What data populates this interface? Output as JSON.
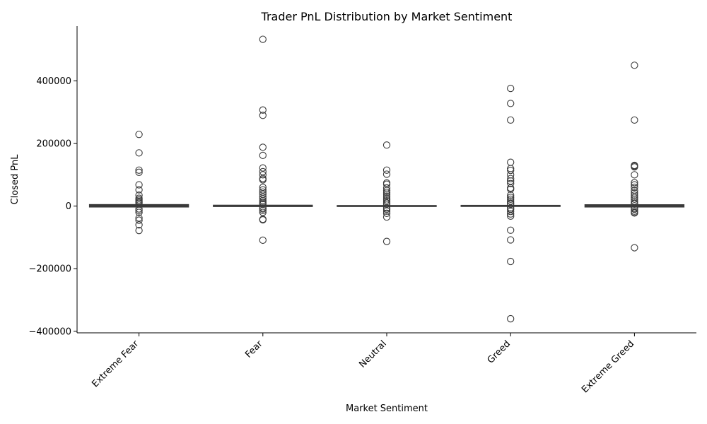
{
  "chart_data": {
    "type": "box",
    "title": "Trader PnL Distribution by Market Sentiment",
    "xlabel": "Market Sentiment",
    "ylabel": "Closed PnL",
    "categories": [
      "Extreme Fear",
      "Fear",
      "Neutral",
      "Greed",
      "Extreme Greed"
    ],
    "ylim": [
      -405000,
      575000
    ],
    "yticks": [
      -400000,
      -200000,
      0,
      200000,
      400000
    ],
    "ytick_labels": [
      "−400000",
      "−200000",
      "0",
      "200000",
      "400000"
    ],
    "grid": false,
    "color": "#3a3a3a",
    "boxes": [
      {
        "category": "Extreme Fear",
        "q1": -3000,
        "median": 500,
        "q3": 5000,
        "whisker_low": -3500,
        "whisker_high": 7000,
        "outliers": [
          229000,
          170000,
          115000,
          108000,
          68000,
          52000,
          35000,
          25000,
          20000,
          16000,
          12000,
          9000,
          -9000,
          -14000,
          -20000,
          -38000,
          -45000,
          -60000,
          -78000
        ]
      },
      {
        "category": "Fear",
        "q1": -1500,
        "median": 300,
        "q3": 3000,
        "whisker_low": -2000,
        "whisker_high": 4000,
        "outliers": [
          533000,
          307000,
          290000,
          188000,
          162000,
          122000,
          110000,
          100000,
          88000,
          84000,
          60000,
          52000,
          45000,
          38000,
          30000,
          24000,
          18000,
          13000,
          9000,
          6000,
          -6000,
          -9000,
          -14000,
          -20000,
          -42000,
          -44000,
          -109000
        ]
      },
      {
        "category": "Neutral",
        "q1": -1000,
        "median": 200,
        "q3": 2000,
        "whisker_low": -1200,
        "whisker_high": 2500,
        "outliers": [
          195000,
          115000,
          102000,
          74000,
          70000,
          58000,
          50000,
          44000,
          38000,
          32000,
          26000,
          20000,
          15000,
          10000,
          6000,
          -6000,
          -10000,
          -16000,
          -23000,
          -35000,
          -113000
        ]
      },
      {
        "category": "Greed",
        "q1": -1200,
        "median": 200,
        "q3": 2500,
        "whisker_low": -1500,
        "whisker_high": 3000,
        "outliers": [
          376000,
          328000,
          275000,
          140000,
          120000,
          114000,
          100000,
          88000,
          80000,
          72000,
          58000,
          54000,
          35000,
          28000,
          22000,
          16000,
          10000,
          6000,
          -6000,
          -10000,
          -17000,
          -25000,
          -32000,
          -77000,
          -108000,
          -177000,
          -360000
        ]
      },
      {
        "category": "Extreme Greed",
        "q1": -3000,
        "median": 800,
        "q3": 4500,
        "whisker_low": -3500,
        "whisker_high": 5500,
        "outliers": [
          450000,
          275000,
          130000,
          128000,
          125000,
          100000,
          75000,
          68000,
          60000,
          50000,
          42000,
          35000,
          28000,
          22000,
          16000,
          10000,
          7000,
          -7000,
          -10000,
          -16000,
          -20000,
          -22000,
          -133000
        ]
      }
    ]
  }
}
